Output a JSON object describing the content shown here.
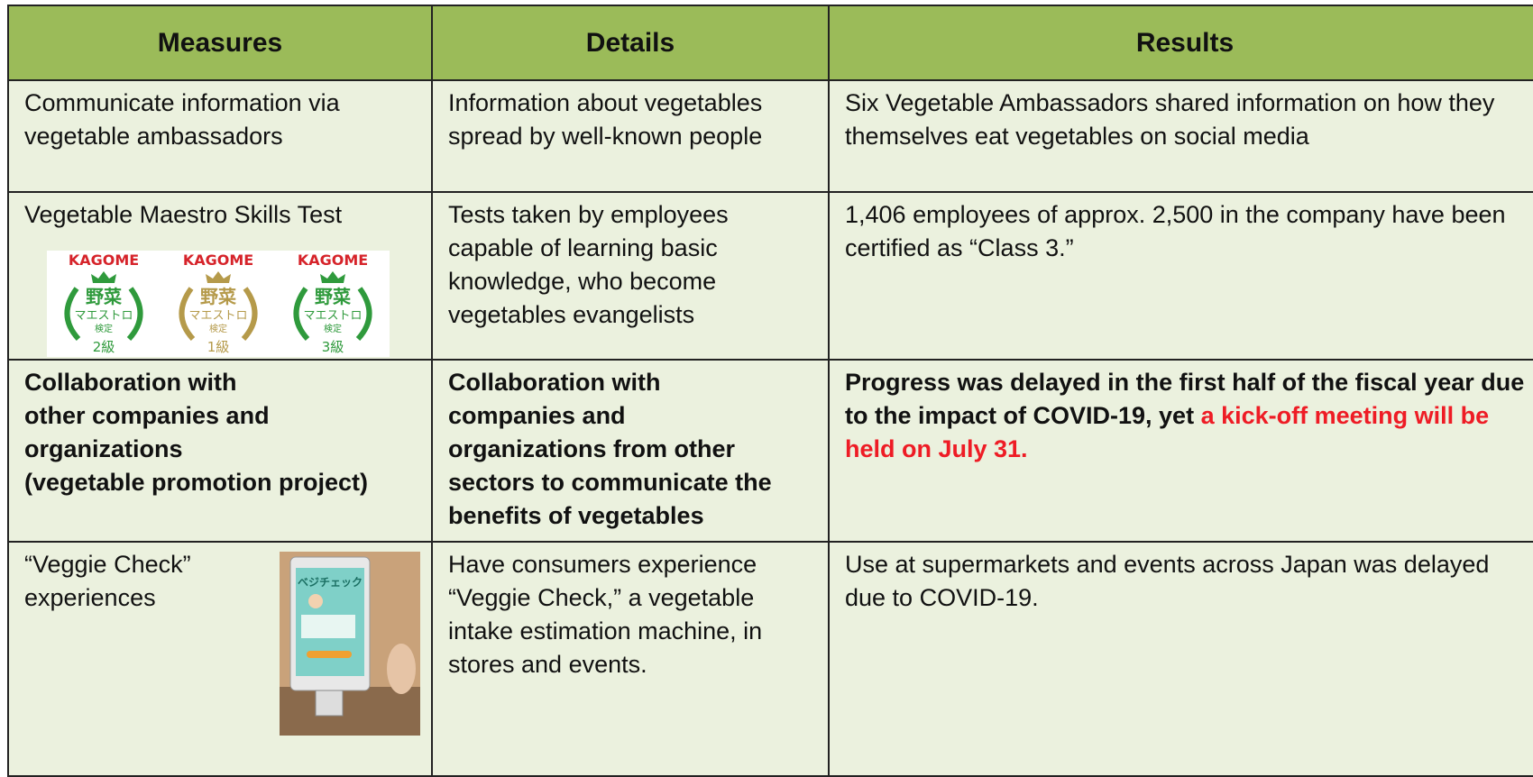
{
  "table": {
    "header": [
      "Measures",
      "Details",
      "Results"
    ],
    "rows": [
      {
        "measure": "Communicate information via vegetable ambassadors",
        "details": "Information about vegetables spread by well-known people",
        "results": "Six Vegetable Ambassadors shared information on how they themselves eat vegetables on social media"
      },
      {
        "measure": "Vegetable Maestro Skills Test",
        "badges": [
          {
            "brand": "KAGOME",
            "name": "野菜",
            "sub": "マエストロ",
            "test": "検定",
            "grade": "2級",
            "color": "#2f9a3c"
          },
          {
            "brand": "KAGOME",
            "name": "野菜",
            "sub": "マエストロ",
            "test": "検定",
            "grade": "1級",
            "color": "#b59a4a"
          },
          {
            "brand": "KAGOME",
            "name": "野菜",
            "sub": "マエストロ",
            "test": "検定",
            "grade": "3級",
            "color": "#2f9a3c"
          }
        ],
        "details": "Tests taken by employees capable of learning basic knowledge, who become vegetables evangelists",
        "results": "1,406 employees of approx. 2,500 in the company have been certified as “Class 3.”"
      },
      {
        "measure_lines": [
          "Collaboration with",
          "other companies and",
          "organizations",
          "(vegetable promotion project)"
        ],
        "details_lines": [
          "Collaboration with",
          "companies and",
          "organizations from other",
          "sectors to communicate the",
          "benefits of vegetables"
        ],
        "results": [
          "Progress was delayed in the first half of the fiscal year due to the impact of COVID-19, yet",
          "a kick-off meeting will be held on July 31."
        ]
      },
      {
        "measure": "“Veggie Check” experiences",
        "photo_screen_title": "ベジチェック",
        "details": "Have consumers experience “Veggie Check,” a vegetable intake estimation machine, in stores and events.",
        "results": "Use at supermarkets and events across Japan was delayed due to COVID-19."
      }
    ]
  }
}
